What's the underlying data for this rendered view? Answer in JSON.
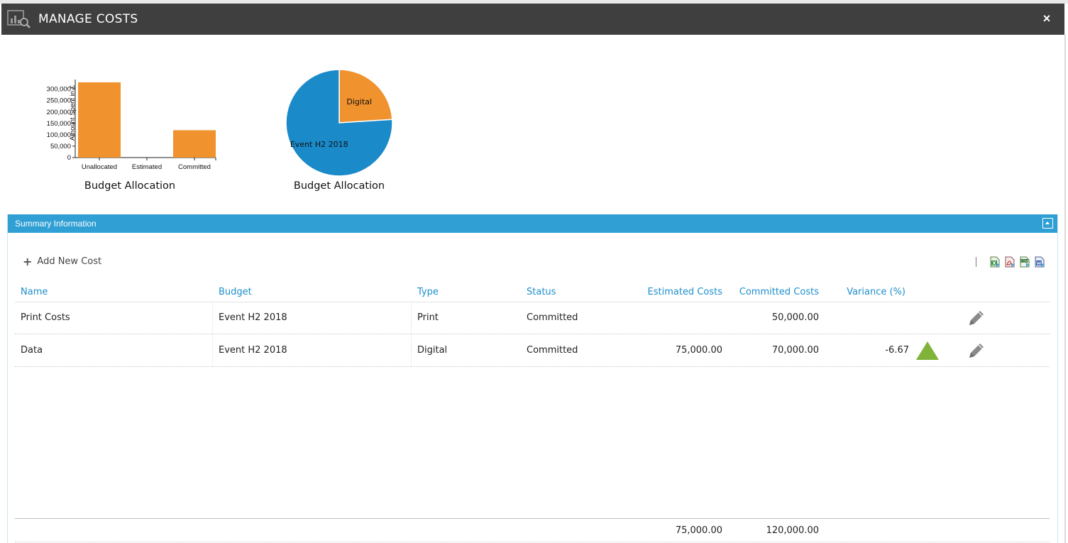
{
  "window": {
    "title": "MANAGE COSTS",
    "title_icon": "chart-search-icon",
    "close_label": "×"
  },
  "colors": {
    "title_bar": "#3f3f3f",
    "panel_header": "#2f9fd4",
    "link_blue": "#1e8fcc",
    "bar_orange": "#f0922e",
    "pie_blue": "#1a8ac9",
    "pie_orange": "#f0922e",
    "indicator_green": "#7fb339"
  },
  "chart_data": [
    {
      "type": "bar",
      "title": "Budget Allocation",
      "ylabel": "Amount Spent in £",
      "xlabel": "",
      "categories": [
        "Unallocated",
        "Estimated",
        "Committed"
      ],
      "values": [
        330000,
        0,
        120000
      ],
      "y_ticks": [
        "0",
        "50,000",
        "100,000",
        "150,000",
        "200,000",
        "250,000",
        "300,000"
      ],
      "ylim": [
        0,
        330000
      ],
      "grid": false,
      "color": "#f0922e"
    },
    {
      "type": "pie",
      "title": "Budget Allocation",
      "labels": [
        "Digital",
        "Event H2 2018"
      ],
      "values": [
        24,
        76
      ],
      "colors": [
        "#f0922e",
        "#1a8ac9"
      ]
    }
  ],
  "panel": {
    "title": "Summary Information",
    "add_label": "Add New Cost",
    "exports": [
      "excel-export-icon",
      "pdf-export-icon",
      "csv-export-icon",
      "word-export-icon"
    ]
  },
  "table": {
    "headers": {
      "name": "Name",
      "budget": "Budget",
      "type": "Type",
      "status": "Status",
      "estimated": "Estimated Costs",
      "committed": "Committed Costs",
      "variance": "Variance (%)"
    },
    "rows": [
      {
        "name": "Print Costs",
        "budget": "Event H2 2018",
        "type": "Print",
        "status": "Committed",
        "estimated": "",
        "committed": "50,000.00",
        "variance": "",
        "indicator": ""
      },
      {
        "name": "Data",
        "budget": "Event H2 2018",
        "type": "Digital",
        "status": "Committed",
        "estimated": "75,000.00",
        "committed": "70,000.00",
        "variance": "-6.67",
        "indicator": "green-up-triangle-icon"
      }
    ],
    "totals": {
      "estimated": "75,000.00",
      "committed": "120,000.00"
    }
  }
}
